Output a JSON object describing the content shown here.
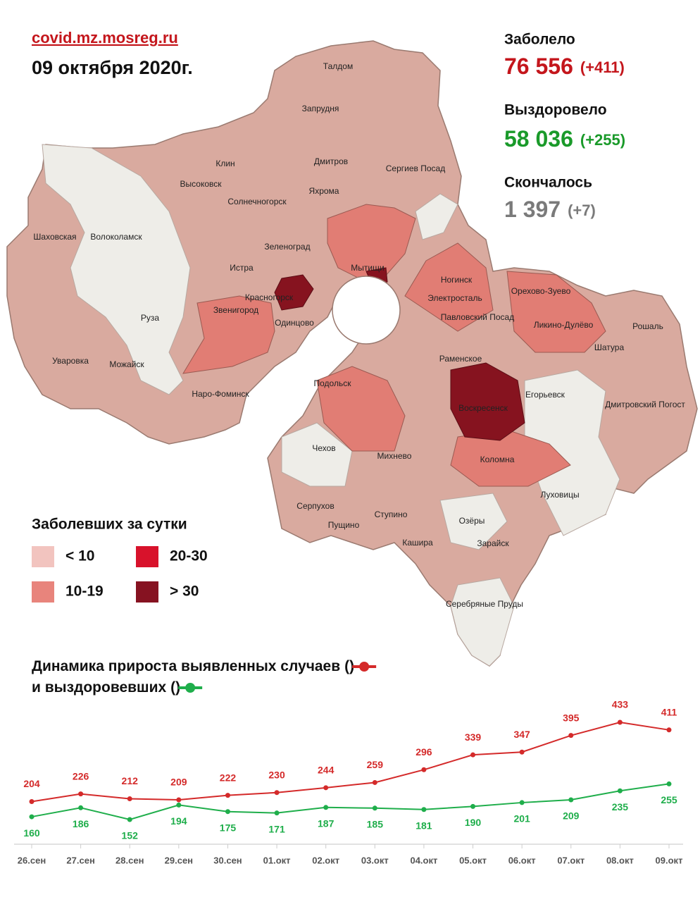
{
  "header": {
    "source": "covid.mz.mosreg.ru",
    "date": "09 октября 2020г."
  },
  "stats": [
    {
      "label": "Заболело",
      "value": "76 556",
      "delta": "(+411)",
      "color": "#c4161c"
    },
    {
      "label": "Выздоровело",
      "value": "58 036",
      "delta": "(+255)",
      "color": "#1a9a2a"
    },
    {
      "label": "Скончалось",
      "value": "1 397",
      "delta": "(+7)",
      "color": "#7a7a7a"
    }
  ],
  "map": {
    "legend_title": "Заболевших за сутки",
    "legend": [
      {
        "label": "< 10",
        "color": "#f2c4bf"
      },
      {
        "label": "10-19",
        "color": "#e8847c"
      },
      {
        "label": "20-30",
        "color": "#d8122b"
      },
      {
        "label": "> 30",
        "color": "#861221"
      }
    ],
    "places": [
      "Талдом",
      "Запрудня",
      "Клин",
      "Дмитров",
      "Сергиев Посад",
      "Высоковск",
      "Яхрома",
      "Солнечногорск",
      "Шаховская",
      "Волоколамск",
      "Зеленоград",
      "Истра",
      "Мытищи",
      "Ногинск",
      "Электросталь",
      "Орехово-Зуево",
      "Красногорск",
      "Звенигород",
      "Одинцово",
      "Павловский Посад",
      "Ликино-Дулёво",
      "Руза",
      "Рошаль",
      "Шатура",
      "Уваровка",
      "Можайск",
      "Раменское",
      "Наро-Фоминск",
      "Егорьевск",
      "Подольск",
      "Воскресенск",
      "Дмитровский Погост",
      "Чехов",
      "Михнево",
      "Коломна",
      "Луховицы",
      "Серпухов",
      "Пущино",
      "Ступино",
      "Озёры",
      "Кашира",
      "Зарайск",
      "Серебряные Пруды"
    ]
  },
  "chart_data": {
    "type": "line",
    "title": "Динамика прироста выявленных случаев",
    "subtitle": "и выздоровевших",
    "legend_brackets": [
      "(",
      ")"
    ],
    "categories": [
      "26.сен",
      "27.сен",
      "28.сен",
      "29.сен",
      "30.сен",
      "01.окт",
      "02.окт",
      "03.окт",
      "04.окт",
      "05.окт",
      "06.окт",
      "07.окт",
      "08.окт",
      "09.окт"
    ],
    "series": [
      {
        "name": "выявленные случаи",
        "color": "#d42a2a",
        "values": [
          204,
          226,
          212,
          209,
          222,
          230,
          244,
          259,
          296,
          339,
          347,
          395,
          433,
          411
        ]
      },
      {
        "name": "выздоровевшие",
        "color": "#1fae4b",
        "values": [
          160,
          186,
          152,
          194,
          175,
          171,
          187,
          185,
          181,
          190,
          201,
          209,
          235,
          255
        ]
      }
    ]
  }
}
